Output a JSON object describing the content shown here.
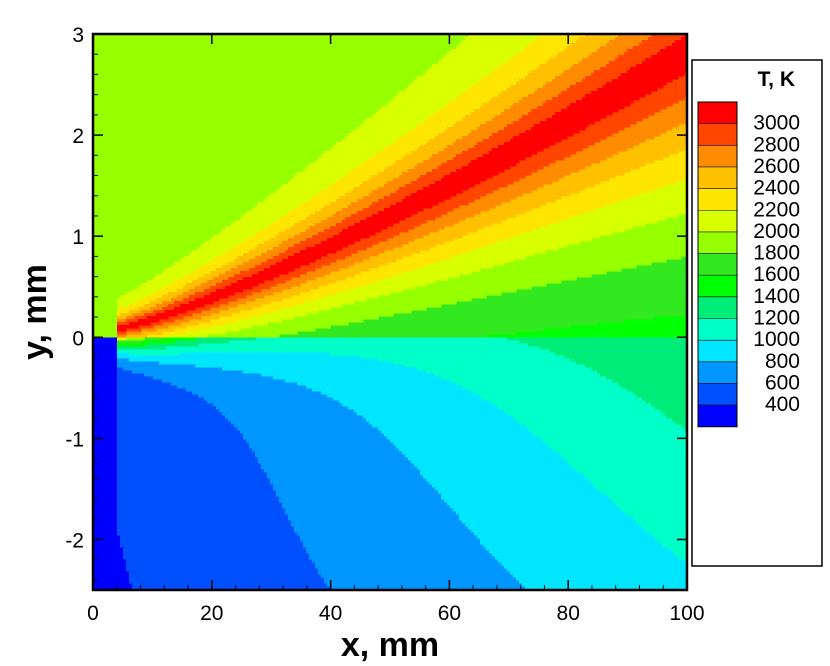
{
  "chart_data": {
    "type": "heatmap",
    "xlabel": "x, mm",
    "ylabel": "y, mm",
    "xlim": [
      0,
      100
    ],
    "ylim": [
      -2.5,
      3
    ],
    "x_ticks": [
      0,
      20,
      40,
      60,
      80,
      100
    ],
    "y_ticks": [
      -2,
      -1,
      0,
      1,
      2,
      3
    ],
    "x_tick_labels": [
      "0",
      "20",
      "40",
      "60",
      "80",
      "100"
    ],
    "y_tick_labels": [
      "-2",
      "-1",
      "0",
      "1",
      "2",
      "3"
    ],
    "field": "temperature",
    "legend": {
      "title": "T, K",
      "placement": "right",
      "levels": [
        3000,
        2800,
        2600,
        2400,
        2200,
        2000,
        1800,
        1600,
        1400,
        1200,
        1000,
        800,
        600,
        400
      ],
      "labels": [
        "3000",
        "2800",
        "2600",
        "2400",
        "2200",
        "2000",
        "1800",
        "1600",
        "1400",
        "1200",
        "1000",
        "800",
        "600",
        "400"
      ],
      "colors": [
        "#ff0000",
        "#ff4500",
        "#ff8c00",
        "#ffc000",
        "#ffe600",
        "#d7ff00",
        "#96ff00",
        "#32e81e",
        "#00ff00",
        "#00ec78",
        "#00ffc8",
        "#00e6ff",
        "#0096ff",
        "#0050ff",
        "#0000ff"
      ]
    },
    "flame_tip": {
      "x": 4,
      "y": 0.08
    },
    "flame_end": {
      "x": 78,
      "y": 2.05
    }
  }
}
